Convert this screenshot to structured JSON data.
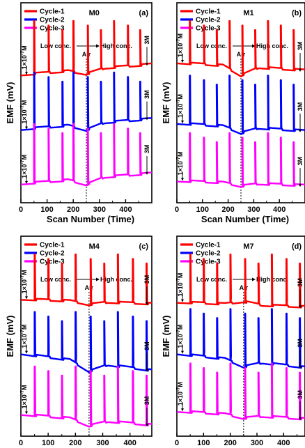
{
  "chart_data": [
    {
      "type": "line",
      "title": "M0",
      "panel_label": "(a)",
      "xlabel": "Scan Number (Time)",
      "ylabel": "EMF (mV)",
      "xlim": [
        0,
        500
      ],
      "x_ticks": [
        0,
        100,
        200,
        300,
        400
      ],
      "legend": [
        "Cycle-1",
        "Cycle-2",
        "Cycle-3"
      ],
      "colors": [
        "#ff0000",
        "#0000ff",
        "#ff00ff"
      ],
      "air_marker_x": 250,
      "annotations": {
        "air": "Air",
        "low": "Low conc.",
        "high": "High conc.",
        "start": "1×10",
        "start_exp": "-7",
        "start_unit": "M",
        "end": "3M"
      },
      "pulse_x": [
        50,
        105,
        158,
        200,
        255,
        305,
        355,
        408,
        455
      ],
      "series": [
        {
          "name": "Cycle-1",
          "baseline_start": 4.2,
          "baseline_end": 4.5,
          "dip_at_air": 4.05,
          "peak": 6.0
        },
        {
          "name": "Cycle-2",
          "baseline_start": 2.4,
          "baseline_end": 2.7,
          "dip_at_air": 2.2,
          "peak": 4.3
        },
        {
          "name": "Cycle-3",
          "baseline_start": 0.6,
          "baseline_end": 0.9,
          "dip_at_air": 0.4,
          "peak": 2.6
        }
      ]
    },
    {
      "type": "line",
      "title": "M1",
      "panel_label": "(b)",
      "xlabel": "Scan Number (Time)",
      "ylabel": "EMF (mV)",
      "xlim": [
        0,
        500
      ],
      "x_ticks": [
        0,
        100,
        200,
        300,
        400
      ],
      "legend": [
        "Cycle-1",
        "Cycle-2",
        "Cycle-3"
      ],
      "colors": [
        "#ff0000",
        "#0000ff",
        "#ff00ff"
      ],
      "air_marker_x": 250,
      "annotations": {
        "air": "Air",
        "low": "Low conc.",
        "high": "High conc.",
        "start": "1×10",
        "start_exp": "-7",
        "start_unit": "M",
        "end": "3M"
      },
      "pulse_x": [
        50,
        105,
        155,
        205,
        255,
        305,
        355,
        405,
        455
      ],
      "series": [
        {
          "name": "Cycle-1",
          "baseline_start": 4.6,
          "baseline_end": 4.3,
          "dip_at_air": 4.3,
          "peak": 6.0
        },
        {
          "name": "Cycle-2",
          "baseline_start": 2.6,
          "baseline_end": 2.3,
          "dip_at_air": 2.4,
          "peak": 4.2
        },
        {
          "name": "Cycle-3",
          "baseline_start": 0.7,
          "baseline_end": 0.5,
          "dip_at_air": 0.6,
          "peak": 2.3
        }
      ]
    },
    {
      "type": "line",
      "title": "M4",
      "panel_label": "(c)",
      "xlabel": "Scan Number (Time)",
      "ylabel": "EMF (mV)",
      "xlim": [
        0,
        480
      ],
      "x_ticks": [
        0,
        100,
        200,
        300,
        400
      ],
      "legend": [
        "Cycle-1",
        "Cycle-2",
        "Cycle-3"
      ],
      "colors": [
        "#ff0000",
        "#0000ff",
        "#ff00ff"
      ],
      "air_marker_x": 250,
      "annotations": {
        "air": "Air",
        "low": "Low conc.",
        "high": "High conc.",
        "start": "1×10",
        "start_exp": "-7",
        "start_unit": "M",
        "end": "3M"
      },
      "pulse_x": [
        50,
        100,
        150,
        200,
        255,
        305,
        355,
        410,
        460
      ],
      "series": [
        {
          "name": "Cycle-1",
          "baseline_start": 4.5,
          "baseline_end": 4.3,
          "dip_at_air": 4.4,
          "peak": 6.0
        },
        {
          "name": "Cycle-2",
          "baseline_start": 2.7,
          "baseline_end": 2.1,
          "dip_at_air": 2.4,
          "peak": 4.1
        },
        {
          "name": "Cycle-3",
          "baseline_start": 0.7,
          "baseline_end": 0.3,
          "dip_at_air": 0.5,
          "peak": 2.3
        }
      ]
    },
    {
      "type": "line",
      "title": "M7",
      "panel_label": "(d)",
      "xlabel": "Scan Number (Time)",
      "ylabel": "EMF (mV)",
      "xlim": [
        0,
        480
      ],
      "x_ticks": [
        0,
        100,
        200,
        300,
        400
      ],
      "legend": [
        "Cycle-1",
        "Cycle-2",
        "Cycle-3"
      ],
      "colors": [
        "#ff0000",
        "#0000ff",
        "#ff00ff"
      ],
      "air_marker_x": 250,
      "annotations": {
        "air": "Air",
        "low": "Low conc.",
        "high": "High conc.",
        "start": "1×10",
        "start_exp": "-7",
        "start_unit": "M",
        "end": "3M"
      },
      "pulse_x": [
        50,
        100,
        150,
        200,
        255,
        305,
        355,
        410,
        460
      ],
      "series": [
        {
          "name": "Cycle-1",
          "baseline_start": 4.4,
          "baseline_end": 4.2,
          "dip_at_air": 4.5,
          "peak": 6.0
        },
        {
          "name": "Cycle-2",
          "baseline_start": 2.7,
          "baseline_end": 2.2,
          "dip_at_air": 2.5,
          "peak": 4.2
        },
        {
          "name": "Cycle-3",
          "baseline_start": 0.8,
          "baseline_end": 0.5,
          "dip_at_air": 0.7,
          "peak": 2.4
        }
      ]
    }
  ]
}
